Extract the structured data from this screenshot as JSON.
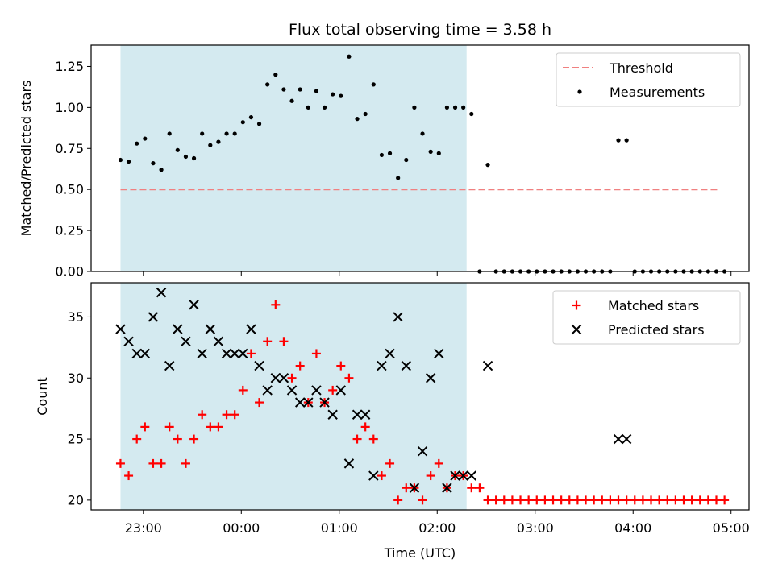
{
  "chart_data": [
    {
      "type": "scatter",
      "title": "Flux total observing time = 3.58 h",
      "xlabel": "",
      "ylabel": "Matched/Predicted stars",
      "xlim": [
        "22:28",
        "05:11"
      ],
      "ylim": [
        0,
        1.38
      ],
      "y_ticks": [
        "0.00",
        "0.25",
        "0.50",
        "0.75",
        "1.00",
        "1.25"
      ],
      "grid": false,
      "legend_position": "top-right",
      "shaded_span": {
        "x_start": "22:46",
        "x_end": "02:18",
        "color": "#d4eaf0"
      },
      "threshold": {
        "name": "Threshold",
        "y": 0.5,
        "x_start": "22:46",
        "x_end": "04:53",
        "color": "#f08080",
        "style": "dashed"
      },
      "series": [
        {
          "name": "Measurements",
          "color": "#000000",
          "marker": "dot",
          "points": [
            [
              "22:46",
              0.68
            ],
            [
              "22:51",
              0.67
            ],
            [
              "22:56",
              0.78
            ],
            [
              "23:01",
              0.81
            ],
            [
              "23:06",
              0.66
            ],
            [
              "23:11",
              0.62
            ],
            [
              "23:16",
              0.84
            ],
            [
              "23:21",
              0.74
            ],
            [
              "23:26",
              0.7
            ],
            [
              "23:31",
              0.69
            ],
            [
              "23:36",
              0.84
            ],
            [
              "23:41",
              0.77
            ],
            [
              "23:46",
              0.79
            ],
            [
              "23:51",
              0.84
            ],
            [
              "23:56",
              0.84
            ],
            [
              "00:01",
              0.91
            ],
            [
              "00:06",
              0.94
            ],
            [
              "00:11",
              0.9
            ],
            [
              "00:16",
              1.14
            ],
            [
              "00:21",
              1.2
            ],
            [
              "00:26",
              1.11
            ],
            [
              "00:31",
              1.04
            ],
            [
              "00:36",
              1.11
            ],
            [
              "00:41",
              1.0
            ],
            [
              "00:46",
              1.1
            ],
            [
              "00:51",
              1.0
            ],
            [
              "00:56",
              1.08
            ],
            [
              "01:01",
              1.07
            ],
            [
              "01:06",
              1.31
            ],
            [
              "01:11",
              0.93
            ],
            [
              "01:16",
              0.96
            ],
            [
              "01:21",
              1.14
            ],
            [
              "01:26",
              0.71
            ],
            [
              "01:31",
              0.72
            ],
            [
              "01:36",
              0.57
            ],
            [
              "01:41",
              0.68
            ],
            [
              "01:46",
              1.0
            ],
            [
              "01:51",
              0.84
            ],
            [
              "01:56",
              0.73
            ],
            [
              "02:01",
              0.72
            ],
            [
              "02:06",
              1.0
            ],
            [
              "02:11",
              1.0
            ],
            [
              "02:16",
              1.0
            ],
            [
              "02:21",
              0.96
            ],
            [
              "02:26",
              0.0
            ],
            [
              "02:31",
              0.65
            ],
            [
              "02:36",
              0.0
            ],
            [
              "02:41",
              0.0
            ],
            [
              "02:46",
              0.0
            ],
            [
              "02:51",
              0.0
            ],
            [
              "02:56",
              0.0
            ],
            [
              "03:01",
              0.0
            ],
            [
              "03:06",
              0.0
            ],
            [
              "03:11",
              0.0
            ],
            [
              "03:16",
              0.0
            ],
            [
              "03:21",
              0.0
            ],
            [
              "03:26",
              0.0
            ],
            [
              "03:31",
              0.0
            ],
            [
              "03:36",
              0.0
            ],
            [
              "03:41",
              0.0
            ],
            [
              "03:46",
              0.0
            ],
            [
              "03:51",
              0.8
            ],
            [
              "03:56",
              0.8
            ],
            [
              "04:01",
              0.0
            ],
            [
              "04:06",
              0.0
            ],
            [
              "04:11",
              0.0
            ],
            [
              "04:16",
              0.0
            ],
            [
              "04:21",
              0.0
            ],
            [
              "04:26",
              0.0
            ],
            [
              "04:31",
              0.0
            ],
            [
              "04:36",
              0.0
            ],
            [
              "04:41",
              0.0
            ],
            [
              "04:46",
              0.0
            ],
            [
              "04:51",
              0.0
            ],
            [
              "04:56",
              0.0
            ]
          ]
        }
      ]
    },
    {
      "type": "scatter",
      "title": "",
      "xlabel": "Time (UTC)",
      "ylabel": "Count",
      "xlim": [
        "22:28",
        "05:11"
      ],
      "ylim": [
        19.2,
        37.8
      ],
      "x_ticks": [
        "23:00",
        "00:00",
        "01:00",
        "02:00",
        "03:00",
        "04:00",
        "05:00"
      ],
      "y_ticks": [
        "20",
        "25",
        "30",
        "35"
      ],
      "grid": false,
      "legend_position": "top-right",
      "shaded_span": {
        "x_start": "22:46",
        "x_end": "02:18",
        "color": "#d4eaf0"
      },
      "series": [
        {
          "name": "Matched stars",
          "color": "#ff0000",
          "marker": "plus",
          "points": [
            [
              "22:46",
              23
            ],
            [
              "22:51",
              22
            ],
            [
              "22:56",
              25
            ],
            [
              "23:01",
              26
            ],
            [
              "23:06",
              23
            ],
            [
              "23:11",
              23
            ],
            [
              "23:16",
              26
            ],
            [
              "23:21",
              25
            ],
            [
              "23:26",
              23
            ],
            [
              "23:31",
              25
            ],
            [
              "23:36",
              27
            ],
            [
              "23:41",
              26
            ],
            [
              "23:46",
              26
            ],
            [
              "23:51",
              27
            ],
            [
              "23:56",
              27
            ],
            [
              "00:01",
              29
            ],
            [
              "00:06",
              32
            ],
            [
              "00:11",
              28
            ],
            [
              "00:16",
              33
            ],
            [
              "00:21",
              36
            ],
            [
              "00:26",
              33
            ],
            [
              "00:31",
              30
            ],
            [
              "00:36",
              31
            ],
            [
              "00:41",
              28
            ],
            [
              "00:46",
              32
            ],
            [
              "00:51",
              28
            ],
            [
              "00:56",
              29
            ],
            [
              "01:01",
              31
            ],
            [
              "01:06",
              30
            ],
            [
              "01:11",
              25
            ],
            [
              "01:16",
              26
            ],
            [
              "01:21",
              25
            ],
            [
              "01:26",
              22
            ],
            [
              "01:31",
              23
            ],
            [
              "01:36",
              20
            ],
            [
              "01:41",
              21
            ],
            [
              "01:46",
              21
            ],
            [
              "01:51",
              20
            ],
            [
              "01:56",
              22
            ],
            [
              "02:01",
              23
            ],
            [
              "02:06",
              21
            ],
            [
              "02:11",
              22
            ],
            [
              "02:16",
              22
            ],
            [
              "02:21",
              21
            ],
            [
              "02:26",
              21
            ],
            [
              "02:31",
              20
            ],
            [
              "02:36",
              20
            ],
            [
              "02:41",
              20
            ],
            [
              "02:46",
              20
            ],
            [
              "02:51",
              20
            ],
            [
              "02:56",
              20
            ],
            [
              "03:01",
              20
            ],
            [
              "03:06",
              20
            ],
            [
              "03:11",
              20
            ],
            [
              "03:16",
              20
            ],
            [
              "03:21",
              20
            ],
            [
              "03:26",
              20
            ],
            [
              "03:31",
              20
            ],
            [
              "03:36",
              20
            ],
            [
              "03:41",
              20
            ],
            [
              "03:46",
              20
            ],
            [
              "03:51",
              20
            ],
            [
              "03:56",
              20
            ],
            [
              "04:01",
              20
            ],
            [
              "04:06",
              20
            ],
            [
              "04:11",
              20
            ],
            [
              "04:16",
              20
            ],
            [
              "04:21",
              20
            ],
            [
              "04:26",
              20
            ],
            [
              "04:31",
              20
            ],
            [
              "04:36",
              20
            ],
            [
              "04:41",
              20
            ],
            [
              "04:46",
              20
            ],
            [
              "04:51",
              20
            ],
            [
              "04:56",
              20
            ]
          ]
        },
        {
          "name": "Predicted stars",
          "color": "#000000",
          "marker": "x",
          "points": [
            [
              "22:46",
              34
            ],
            [
              "22:51",
              33
            ],
            [
              "22:56",
              32
            ],
            [
              "23:01",
              32
            ],
            [
              "23:06",
              35
            ],
            [
              "23:11",
              37
            ],
            [
              "23:16",
              31
            ],
            [
              "23:21",
              34
            ],
            [
              "23:26",
              33
            ],
            [
              "23:31",
              36
            ],
            [
              "23:36",
              32
            ],
            [
              "23:41",
              34
            ],
            [
              "23:46",
              33
            ],
            [
              "23:51",
              32
            ],
            [
              "23:56",
              32
            ],
            [
              "00:01",
              32
            ],
            [
              "00:06",
              34
            ],
            [
              "00:11",
              31
            ],
            [
              "00:16",
              29
            ],
            [
              "00:21",
              30
            ],
            [
              "00:26",
              30
            ],
            [
              "00:31",
              29
            ],
            [
              "00:36",
              28
            ],
            [
              "00:41",
              28
            ],
            [
              "00:46",
              29
            ],
            [
              "00:51",
              28
            ],
            [
              "00:56",
              27
            ],
            [
              "01:01",
              29
            ],
            [
              "01:06",
              23
            ],
            [
              "01:11",
              27
            ],
            [
              "01:16",
              27
            ],
            [
              "01:21",
              22
            ],
            [
              "01:26",
              31
            ],
            [
              "01:31",
              32
            ],
            [
              "01:36",
              35
            ],
            [
              "01:41",
              31
            ],
            [
              "01:46",
              21
            ],
            [
              "01:51",
              24
            ],
            [
              "01:56",
              30
            ],
            [
              "02:01",
              32
            ],
            [
              "02:06",
              21
            ],
            [
              "02:11",
              22
            ],
            [
              "02:16",
              22
            ],
            [
              "02:21",
              22
            ],
            [
              "02:31",
              31
            ],
            [
              "03:51",
              25
            ],
            [
              "03:56",
              25
            ]
          ]
        }
      ]
    }
  ]
}
